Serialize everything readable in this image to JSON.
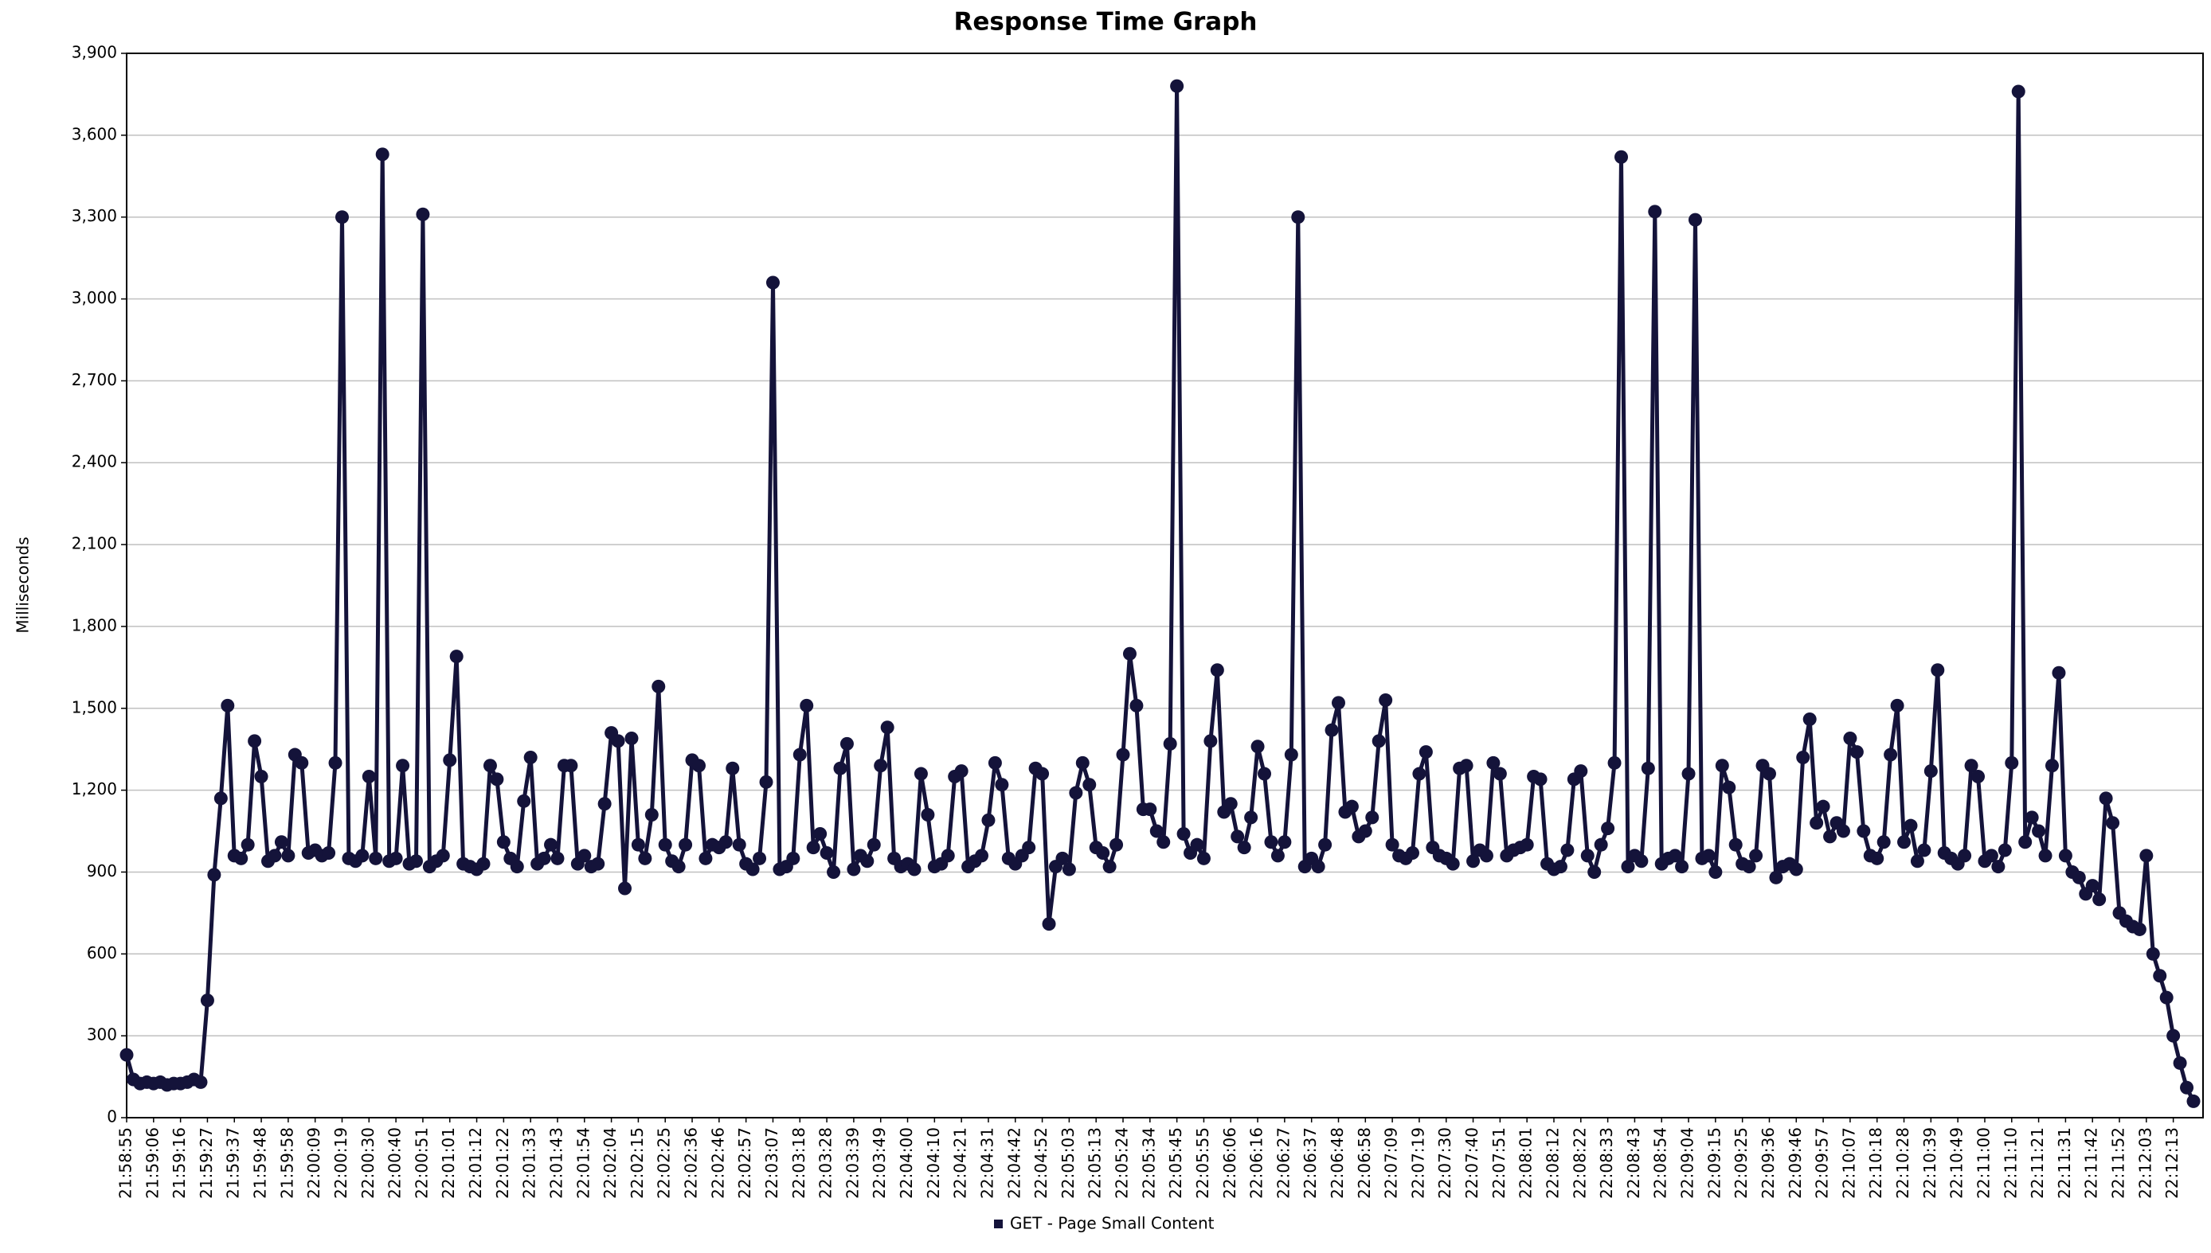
{
  "chart_data": {
    "type": "line",
    "title": "Response Time Graph",
    "y_label": "Milliseconds",
    "categories": [
      "21:58:55",
      null,
      null,
      null,
      "21:59:06",
      null,
      null,
      null,
      "21:59:16",
      null,
      null,
      null,
      "21:59:27",
      null,
      null,
      null,
      "21:59:37",
      null,
      null,
      null,
      "21:59:48",
      null,
      null,
      null,
      "21:59:58",
      null,
      null,
      null,
      "22:00:09",
      null,
      null,
      null,
      "22:00:19",
      null,
      null,
      null,
      "22:00:30",
      null,
      null,
      null,
      "22:00:40",
      null,
      null,
      null,
      "22:00:51",
      null,
      null,
      null,
      "22:01:01",
      null,
      null,
      null,
      "22:01:12",
      null,
      null,
      null,
      "22:01:22",
      null,
      null,
      null,
      "22:01:33",
      null,
      null,
      null,
      "22:01:43",
      null,
      null,
      null,
      "22:01:54",
      null,
      null,
      null,
      "22:02:04",
      null,
      null,
      null,
      "22:02:15",
      null,
      null,
      null,
      "22:02:25",
      null,
      null,
      null,
      "22:02:36",
      null,
      null,
      null,
      "22:02:46",
      null,
      null,
      null,
      "22:02:57",
      null,
      null,
      null,
      "22:03:07",
      null,
      null,
      null,
      "22:03:18",
      null,
      null,
      null,
      "22:03:28",
      null,
      null,
      null,
      "22:03:39",
      null,
      null,
      null,
      "22:03:49",
      null,
      null,
      null,
      "22:04:00",
      null,
      null,
      null,
      "22:04:10",
      null,
      null,
      null,
      "22:04:21",
      null,
      null,
      null,
      "22:04:31",
      null,
      null,
      null,
      "22:04:42",
      null,
      null,
      null,
      "22:04:52",
      null,
      null,
      null,
      "22:05:03",
      null,
      null,
      null,
      "22:05:13",
      null,
      null,
      null,
      "22:05:24",
      null,
      null,
      null,
      "22:05:34",
      null,
      null,
      null,
      "22:05:45",
      null,
      null,
      null,
      "22:05:55",
      null,
      null,
      null,
      "22:06:06",
      null,
      null,
      null,
      "22:06:16",
      null,
      null,
      null,
      "22:06:27",
      null,
      null,
      null,
      "22:06:37",
      null,
      null,
      null,
      "22:06:48",
      null,
      null,
      null,
      "22:06:58",
      null,
      null,
      null,
      "22:07:09",
      null,
      null,
      null,
      "22:07:19",
      null,
      null,
      null,
      "22:07:30",
      null,
      null,
      null,
      "22:07:40",
      null,
      null,
      null,
      "22:07:51",
      null,
      null,
      null,
      "22:08:01",
      null,
      null,
      null,
      "22:08:12",
      null,
      null,
      null,
      "22:08:22",
      null,
      null,
      null,
      "22:08:33",
      null,
      null,
      null,
      "22:08:43",
      null,
      null,
      null,
      "22:08:54",
      null,
      null,
      null,
      "22:09:04",
      null,
      null,
      null,
      "22:09:15",
      null,
      null,
      null,
      "22:09:25",
      null,
      null,
      null,
      "22:09:36",
      null,
      null,
      null,
      "22:09:46",
      null,
      null,
      null,
      "22:09:57",
      null,
      null,
      null,
      "22:10:07",
      null,
      null,
      null,
      "22:10:18",
      null,
      null,
      null,
      "22:10:28",
      null,
      null,
      null,
      "22:10:39",
      null,
      null,
      null,
      "22:10:49",
      null,
      null,
      null,
      "22:11:00",
      null,
      null,
      null,
      "22:11:10",
      null,
      null,
      null,
      "22:11:21",
      null,
      null,
      null,
      "22:11:31",
      null,
      null,
      null,
      "22:11:42",
      null,
      null,
      null,
      "22:11:52",
      null,
      null,
      null,
      "22:12:03",
      null,
      null,
      null,
      "22:12:13",
      null,
      null,
      null
    ],
    "series": [
      {
        "name": "GET - Page Small Content",
        "color": "#14133a",
        "values": [
          230,
          140,
          125,
          130,
          125,
          130,
          120,
          125,
          125,
          130,
          140,
          130,
          430,
          890,
          1170,
          1510,
          960,
          950,
          1000,
          1380,
          1250,
          940,
          960,
          1010,
          960,
          1330,
          1300,
          970,
          980,
          960,
          970,
          1300,
          3300,
          950,
          940,
          960,
          1250,
          950,
          3530,
          940,
          950,
          1290,
          930,
          940,
          3310,
          920,
          940,
          960,
          1310,
          1690,
          930,
          920,
          910,
          930,
          1290,
          1240,
          1010,
          950,
          920,
          1160,
          1320,
          930,
          950,
          1000,
          950,
          1290,
          1290,
          930,
          960,
          920,
          930,
          1150,
          1410,
          1380,
          840,
          1390,
          1000,
          950,
          1110,
          1580,
          1000,
          940,
          920,
          1000,
          1310,
          1290,
          950,
          1000,
          990,
          1010,
          1280,
          1000,
          930,
          910,
          950,
          1230,
          3060,
          910,
          920,
          950,
          1330,
          1510,
          990,
          1040,
          970,
          900,
          1280,
          1370,
          910,
          960,
          940,
          1000,
          1290,
          1430,
          950,
          920,
          930,
          910,
          1260,
          1110,
          920,
          930,
          960,
          1250,
          1270,
          920,
          940,
          960,
          1090,
          1300,
          1220,
          950,
          930,
          960,
          990,
          1280,
          1260,
          710,
          920,
          950,
          910,
          1190,
          1300,
          1220,
          990,
          970,
          920,
          1000,
          1330,
          1700,
          1510,
          1130,
          1130,
          1050,
          1010,
          1370,
          3780,
          1040,
          970,
          1000,
          950,
          1380,
          1640,
          1120,
          1150,
          1030,
          990,
          1100,
          1360,
          1260,
          1010,
          960,
          1010,
          1330,
          3300,
          920,
          950,
          920,
          1000,
          1420,
          1520,
          1120,
          1140,
          1030,
          1050,
          1100,
          1380,
          1530,
          1000,
          960,
          950,
          970,
          1260,
          1340,
          990,
          960,
          950,
          930,
          1280,
          1290,
          940,
          980,
          960,
          1300,
          1260,
          960,
          980,
          990,
          1000,
          1250,
          1240,
          930,
          910,
          920,
          980,
          1240,
          1270,
          960,
          900,
          1000,
          1060,
          1300,
          3520,
          920,
          960,
          940,
          1280,
          3320,
          930,
          950,
          960,
          920,
          1260,
          3290,
          950,
          960,
          900,
          1290,
          1210,
          1000,
          930,
          920,
          960,
          1290,
          1260,
          880,
          920,
          930,
          910,
          1320,
          1460,
          1080,
          1140,
          1030,
          1080,
          1050,
          1390,
          1340,
          1050,
          960,
          950,
          1010,
          1330,
          1510,
          1010,
          1070,
          940,
          980,
          1270,
          1640,
          970,
          950,
          930,
          960,
          1290,
          1250,
          940,
          960,
          920,
          980,
          1300,
          3760,
          1010,
          1100,
          1050,
          960,
          1290,
          1630,
          960,
          900,
          880,
          820,
          850,
          800,
          1170,
          1080,
          750,
          720,
          700,
          690,
          960,
          600,
          520,
          440,
          300,
          200,
          110,
          60
        ]
      }
    ],
    "ylim": [
      0,
      3900
    ],
    "yticks": [
      0,
      300,
      600,
      900,
      {
        "value": 1200,
        "label": "1,200"
      },
      {
        "value": 1500,
        "label": "1,500"
      },
      {
        "value": 1800,
        "label": "1,800"
      },
      {
        "value": 2100,
        "label": "2,100"
      },
      {
        "value": 2400,
        "label": "2,400"
      },
      {
        "value": 2700,
        "label": "2,700"
      },
      {
        "value": 3000,
        "label": "3,000"
      },
      {
        "value": 3300,
        "label": "3,300"
      },
      {
        "value": 3600,
        "label": "3,600"
      },
      {
        "value": 3900,
        "label": "3,900"
      }
    ],
    "grid": true
  }
}
